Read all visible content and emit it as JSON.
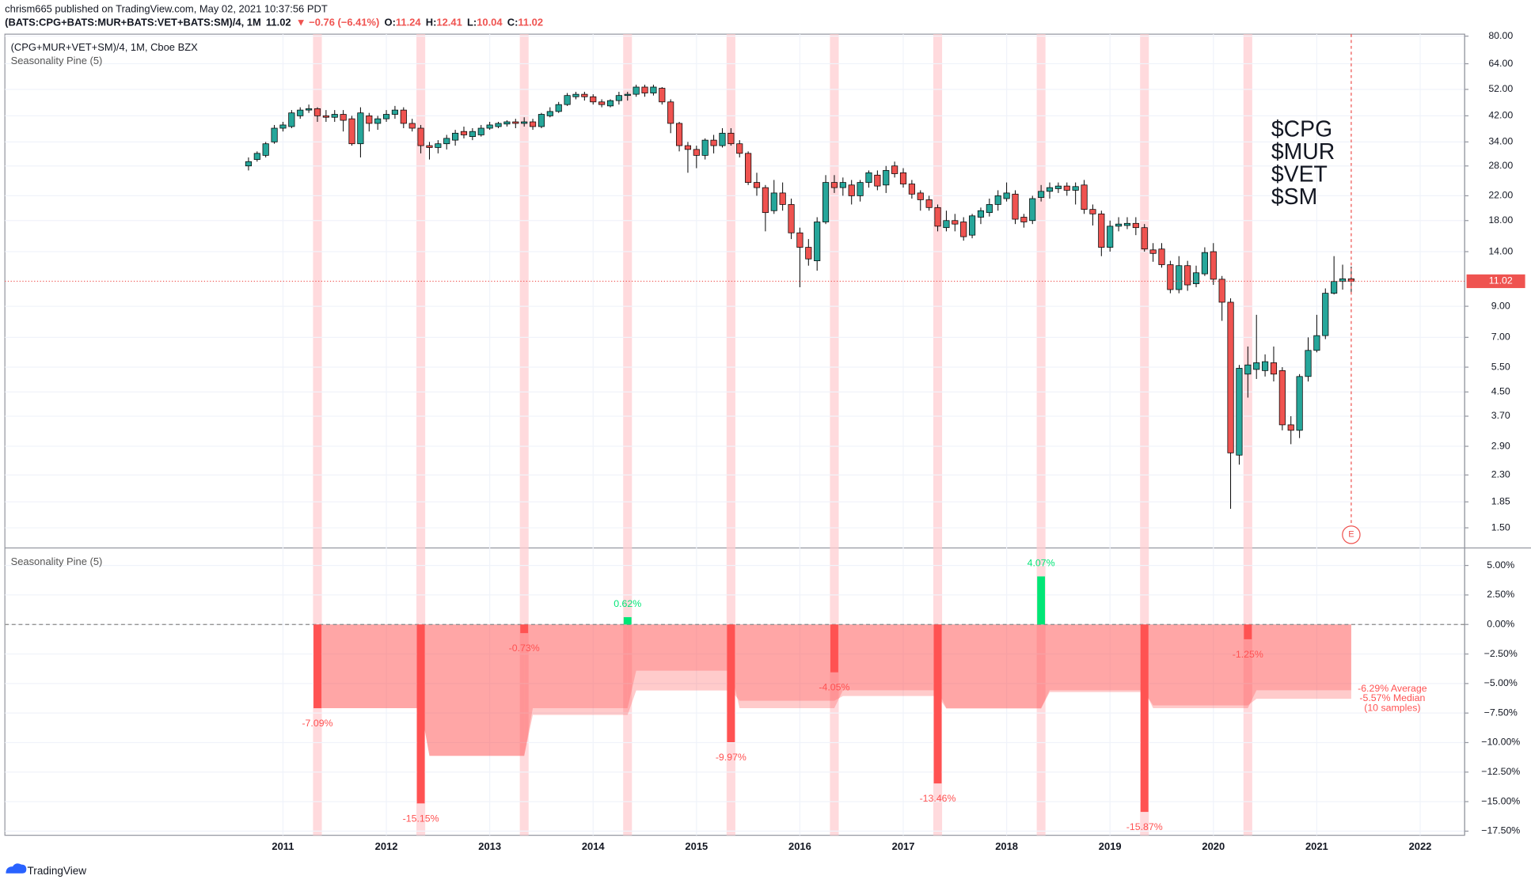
{
  "header": {
    "publisher": "chrism665 published on TradingView.com, May 02, 2021 10:37:56 PDT",
    "symbol": "(BATS:CPG+BATS:MUR+BATS:VET+BATS:SM)/4, 1M",
    "change": "▼ −0.76 (−6.41%)",
    "ohlc_labels": [
      "O:",
      "H:",
      "L:",
      "C:"
    ]
  },
  "footer": "TradingView",
  "chart_data": [
    {
      "type": "candlestick",
      "title": "(CPG+MUR+VET+SM)/4, 1M, Cboe BZX",
      "indicator": "Seasonality Pine (5)",
      "annotations": [
        "$CPG",
        "$MUR",
        "$VET",
        "$SM"
      ],
      "earnings_marker": "E",
      "up_color": "#26a69a",
      "down_color": "#ef5350",
      "log_scale": true,
      "grid": true,
      "xlim": [
        2008.31,
        2022.43
      ],
      "xticks": [
        2011,
        2012,
        2013,
        2014,
        2015,
        2016,
        2017,
        2018,
        2019,
        2020,
        2021,
        2022
      ],
      "ylim": [
        1.28,
        81.3
      ],
      "yticks": [
        {
          "value": 80,
          "label": "80.00"
        },
        {
          "value": 64,
          "label": "64.00"
        },
        {
          "value": 52,
          "label": "52.00"
        },
        {
          "value": 42,
          "label": "42.00"
        },
        {
          "value": 34,
          "label": "34.00"
        },
        {
          "value": 28,
          "label": "28.00"
        },
        {
          "value": 22,
          "label": "22.00"
        },
        {
          "value": 18,
          "label": "18.00"
        },
        {
          "value": 14,
          "label": "14.00"
        },
        {
          "value": 9,
          "label": "9.00"
        },
        {
          "value": 7,
          "label": "7.00"
        },
        {
          "value": 5.5,
          "label": "5.50"
        },
        {
          "value": 4.5,
          "label": "4.50"
        },
        {
          "value": 3.7,
          "label": "3.70"
        },
        {
          "value": 2.9,
          "label": "2.90"
        },
        {
          "value": 2.3,
          "label": "2.30"
        },
        {
          "value": 1.85,
          "label": "1.85"
        },
        {
          "value": 1.5,
          "label": "1.50"
        }
      ],
      "x": [
        "2010-09",
        "2010-10",
        "2010-11",
        "2010-12",
        "2011-01",
        "2011-02",
        "2011-03",
        "2011-04",
        "2011-05",
        "2011-06",
        "2011-07",
        "2011-08",
        "2011-09",
        "2011-10",
        "2011-11",
        "2011-12",
        "2012-01",
        "2012-02",
        "2012-03",
        "2012-04",
        "2012-05",
        "2012-06",
        "2012-07",
        "2012-08",
        "2012-09",
        "2012-10",
        "2012-11",
        "2012-12",
        "2013-01",
        "2013-02",
        "2013-03",
        "2013-04",
        "2013-05",
        "2013-06",
        "2013-07",
        "2013-08",
        "2013-09",
        "2013-10",
        "2013-11",
        "2013-12",
        "2014-01",
        "2014-02",
        "2014-03",
        "2014-04",
        "2014-05",
        "2014-06",
        "2014-07",
        "2014-08",
        "2014-09",
        "2014-10",
        "2014-11",
        "2014-12",
        "2015-01",
        "2015-02",
        "2015-03",
        "2015-04",
        "2015-05",
        "2015-06",
        "2015-07",
        "2015-08",
        "2015-09",
        "2015-10",
        "2015-11",
        "2015-12",
        "2016-01",
        "2016-02",
        "2016-03",
        "2016-04",
        "2016-05",
        "2016-06",
        "2016-07",
        "2016-08",
        "2016-09",
        "2016-10",
        "2016-11",
        "2016-12",
        "2017-01",
        "2017-02",
        "2017-03",
        "2017-04",
        "2017-05",
        "2017-06",
        "2017-07",
        "2017-08",
        "2017-09",
        "2017-10",
        "2017-11",
        "2017-12",
        "2018-01",
        "2018-02",
        "2018-03",
        "2018-04",
        "2018-05",
        "2018-06",
        "2018-07",
        "2018-08",
        "2018-09",
        "2018-10",
        "2018-11",
        "2018-12",
        "2019-01",
        "2019-02",
        "2019-03",
        "2019-04",
        "2019-05",
        "2019-06",
        "2019-07",
        "2019-08",
        "2019-09",
        "2019-10",
        "2019-11",
        "2019-12",
        "2020-01",
        "2020-02",
        "2020-03",
        "2020-04",
        "2020-05",
        "2020-06",
        "2020-07",
        "2020-08",
        "2020-09",
        "2020-10",
        "2020-11",
        "2020-12",
        "2021-01",
        "2021-02",
        "2021-03",
        "2021-04",
        "2021-05"
      ],
      "open": [
        28,
        29.5,
        30.5,
        34,
        38,
        38.5,
        42,
        44,
        44.5,
        42,
        41.5,
        42.5,
        41,
        33.5,
        42,
        39.5,
        41,
        42.5,
        44,
        39.5,
        38,
        33,
        32.5,
        33.5,
        34.5,
        37,
        35.5,
        36,
        38,
        38.5,
        39.3,
        40,
        39.5,
        40,
        38.5,
        42,
        43.5,
        46,
        49,
        50,
        49,
        47,
        45.5,
        47.5,
        49.5,
        50,
        53,
        50.5,
        52.5,
        47,
        39.5,
        33,
        32,
        30.5,
        34.5,
        33,
        36.5,
        33.5,
        31,
        24.5,
        23.5,
        19.5,
        22.5,
        20.5,
        16.3,
        14.5,
        13,
        17.8,
        24.5,
        23.5,
        24,
        22,
        24.5,
        26,
        24,
        28,
        26.5,
        24.2,
        22.5,
        21.3,
        20,
        17,
        18,
        17.8,
        16,
        18.5,
        19.2,
        20.5,
        21.5,
        22.3,
        18.5,
        18,
        21.7,
        22.8,
        23.3,
        23.8,
        23,
        24,
        19.7,
        19,
        14.5,
        17.2,
        17.3,
        17.6,
        17,
        14.2,
        14.3,
        12.6,
        10.3,
        12.5,
        10.8,
        11.7,
        14,
        11.2,
        9.3,
        2.7,
        5.2,
        5.4,
        5.35,
        5.7,
        5.35,
        3.45,
        3.3,
        5.1,
        6.3,
        7.1,
        10,
        11,
        11.24
      ],
      "high": [
        30,
        31.5,
        34,
        39,
        40,
        44,
        45,
        46,
        45,
        44,
        44,
        44,
        42,
        45,
        43,
        42,
        44,
        45.5,
        45,
        41,
        39,
        34,
        34.5,
        36,
        37.5,
        38.5,
        38,
        39,
        40,
        40,
        40.5,
        41,
        41.5,
        41,
        43,
        45,
        47,
        50.5,
        51,
        51,
        50,
        48,
        48,
        51,
        51,
        54,
        54,
        54,
        53,
        48,
        40,
        34,
        33,
        35,
        36,
        38,
        38,
        34.5,
        31.5,
        26.5,
        24,
        25,
        24.5,
        21.5,
        17,
        15.5,
        18.5,
        26,
        26,
        25.5,
        25,
        25,
        27,
        27,
        28,
        29,
        27.5,
        25,
        23,
        22,
        20.5,
        19.5,
        19,
        18.5,
        19,
        20,
        21.5,
        23,
        24.5,
        23,
        19,
        22,
        24,
        24.5,
        24.5,
        24.5,
        24.5,
        25,
        20.5,
        19.5,
        18,
        18.5,
        18.5,
        18.5,
        17.5,
        15,
        15,
        13,
        13.5,
        13,
        12.5,
        14.5,
        15,
        11.5,
        9.6,
        5.6,
        6.5,
        8.4,
        6.1,
        6.5,
        5.5,
        3.7,
        5.2,
        7,
        8.4,
        10.4,
        13.5,
        12.6,
        12.41
      ],
      "low": [
        27,
        29,
        30,
        33.5,
        37,
        38,
        41,
        43,
        40,
        40,
        40,
        37,
        33,
        30,
        37,
        37.5,
        40,
        41,
        38,
        37,
        31,
        29.5,
        31,
        32,
        33,
        35,
        34.5,
        35.5,
        37.5,
        38,
        38.5,
        38,
        38.5,
        37.5,
        38,
        41.5,
        43,
        45.5,
        48,
        47.5,
        46,
        45,
        45,
        46,
        47.5,
        49,
        49,
        49.5,
        46,
        36.5,
        31.5,
        26.5,
        27.5,
        29.5,
        31,
        32.5,
        33,
        30,
        24,
        22,
        16.5,
        19,
        19.5,
        15.5,
        10.5,
        12.5,
        12,
        17.5,
        22.5,
        22,
        20.5,
        21,
        23.5,
        23,
        22.5,
        25.5,
        23.5,
        21.5,
        19.5,
        19.5,
        16.5,
        16.5,
        16.5,
        15.3,
        15.6,
        17.5,
        18.6,
        19.5,
        21,
        17.5,
        17,
        17.5,
        21,
        21.5,
        22.5,
        22,
        20.5,
        19,
        17.3,
        13.5,
        14,
        16.5,
        16.8,
        16,
        14,
        12.9,
        12.3,
        10,
        10,
        10.2,
        10.5,
        11.5,
        10.7,
        8,
        1.75,
        2.5,
        4.3,
        5,
        5.1,
        4.9,
        3.3,
        2.95,
        3.1,
        4.9,
        6.2,
        6.9,
        9.9,
        10.3,
        10.04
      ],
      "close": [
        29,
        31,
        33.5,
        38,
        39,
        43,
        44,
        44.5,
        42,
        41.5,
        42.5,
        40.5,
        33.5,
        43,
        39.5,
        41,
        42.5,
        44,
        39.5,
        38,
        33,
        32.5,
        33.5,
        35,
        36.5,
        36,
        37,
        38,
        39,
        39.5,
        40,
        39.5,
        40,
        38.5,
        42.5,
        43.5,
        46,
        49.5,
        50,
        49,
        47,
        46,
        47.5,
        49.5,
        50,
        53,
        50.5,
        53,
        47,
        39.5,
        33,
        32,
        30.5,
        34.5,
        33,
        36.5,
        33.5,
        31,
        24.5,
        23.5,
        19.2,
        22.5,
        20.5,
        16.3,
        14.5,
        13.2,
        17.8,
        24.5,
        23.5,
        24.5,
        22,
        24.5,
        26.5,
        23.8,
        27,
        26.3,
        24.2,
        22.3,
        21.3,
        20,
        17.2,
        18,
        17.5,
        15.8,
        18.7,
        19.5,
        20.5,
        22,
        22.5,
        18.2,
        17.8,
        21.5,
        22.8,
        23.5,
        23.8,
        23,
        23.7,
        19.7,
        19,
        14.5,
        17.2,
        17.5,
        17.6,
        17,
        14.3,
        13.8,
        12.6,
        10.3,
        12.5,
        10.7,
        11.8,
        13.9,
        11.2,
        9.3,
        2.75,
        5.45,
        5.6,
        5.7,
        5.75,
        5.2,
        3.45,
        3.3,
        5.1,
        6.3,
        7.1,
        10,
        11,
        11.24,
        11.02
      ]
    },
    {
      "type": "bar",
      "title": "Seasonality Pine (5)",
      "x": [
        "2011-05",
        "2012-05",
        "2013-05",
        "2014-05",
        "2015-05",
        "2016-05",
        "2017-05",
        "2018-05",
        "2019-05",
        "2020-05"
      ],
      "values": [
        -7.09,
        -15.15,
        -0.73,
        0.62,
        -9.97,
        -4.05,
        -13.46,
        4.07,
        -15.87,
        -1.25
      ],
      "value_labels": [
        "-7.09%",
        "-15.15%",
        "-0.73%",
        "0.62%",
        "-9.97%",
        "-4.05%",
        "-13.46%",
        "4.07%",
        "-15.87%",
        "-1.25%"
      ],
      "up_color": "#00e676",
      "down_color": "#ff5252",
      "band_color": "#ffcdd2",
      "area_color": "#ff5252",
      "average": [
        -7.09,
        -11.12,
        -7.66,
        -5.59,
        -6.46,
        -6.06,
        -7.12,
        -5.72,
        -6.85,
        -6.29
      ],
      "median": [
        -7.09,
        -11.12,
        -7.09,
        -3.91,
        -7.09,
        -5.57,
        -7.09,
        -5.57,
        -7.09,
        -5.57
      ],
      "summary": [
        "-6.29% Average",
        "-5.57% Median",
        "(10 samples)"
      ],
      "ylim": [
        -17.85,
        6.36
      ],
      "yticks": [
        {
          "value": 5,
          "label": "5.00%"
        },
        {
          "value": 2.5,
          "label": "2.50%"
        },
        {
          "value": 0,
          "label": "0.00%"
        },
        {
          "value": -2.5,
          "label": "−2.50%"
        },
        {
          "value": -5,
          "label": "−5.00%"
        },
        {
          "value": -7.5,
          "label": "−7.50%"
        },
        {
          "value": -10,
          "label": "−10.00%"
        },
        {
          "value": -12.5,
          "label": "−12.50%"
        },
        {
          "value": -15,
          "label": "−15.00%"
        },
        {
          "value": -17.5,
          "label": "−17.50%"
        }
      ]
    }
  ]
}
